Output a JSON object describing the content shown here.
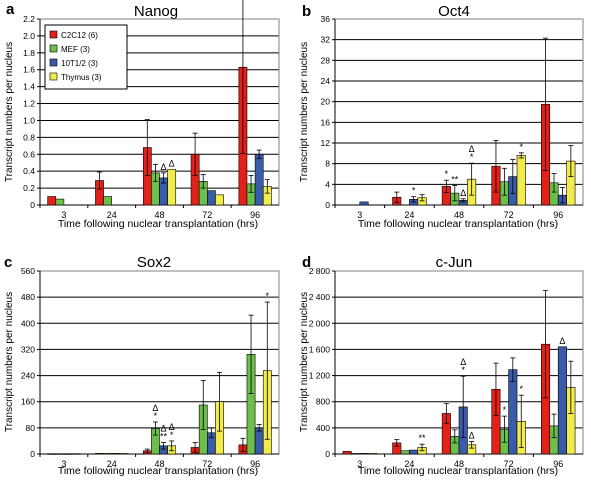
{
  "colors": {
    "C2C12": "#e32119",
    "MEF": "#6cc04a",
    "10T1/2": "#3a5ba9",
    "Thymus": "#f2ec4a",
    "grid": "#000000"
  },
  "chart_data": [
    {
      "type": "bar",
      "panel": "a",
      "title": "Nanog",
      "xlabel": "Time following nuclear transplantation (hrs)",
      "ylabel": "Transcript numbers per nucleus",
      "categories": [
        "3",
        "24",
        "48",
        "72",
        "96"
      ],
      "ylim": [
        0,
        2.2
      ],
      "yticks": [
        "0",
        "0.2",
        "0.4",
        "0.6",
        "0.8",
        "1.0",
        "1.2",
        "1.4",
        "1.6",
        "1.8",
        "2.0",
        "2.2"
      ],
      "grid": true,
      "legend_position": "top-left",
      "legend": [
        "C2C12 (6)",
        "MEF (3)",
        "10T1/2 (3)",
        "Thymus (3)"
      ],
      "series": [
        {
          "name": "C2C12 (6)",
          "color_key": "C2C12",
          "values": [
            0.1,
            0.29,
            0.68,
            0.6,
            1.63
          ],
          "errors": [
            0,
            0.1,
            0.33,
            0.25,
            1.02
          ]
        },
        {
          "name": "MEF (3)",
          "color_key": "MEF",
          "values": [
            0.07,
            0.1,
            0.38,
            0.28,
            0.25
          ],
          "errors": [
            0,
            0,
            0.1,
            0.08,
            0.1
          ]
        },
        {
          "name": "10T1/2 (3)",
          "color_key": "10T1/2",
          "values": [
            null,
            null,
            0.32,
            0.17,
            0.6
          ],
          "errors": [
            0,
            0,
            0.06,
            0,
            0.05
          ]
        },
        {
          "name": "Thymus (3)",
          "color_key": "Thymus",
          "values": [
            null,
            null,
            0.42,
            0.12,
            0.22
          ],
          "errors": [
            0,
            0,
            0,
            0,
            0.08
          ]
        }
      ],
      "annotations": [
        {
          "category": "48",
          "series": 2,
          "labels": [
            "Δ"
          ]
        },
        {
          "category": "48",
          "series": 3,
          "labels": [
            "Δ"
          ]
        }
      ]
    },
    {
      "type": "bar",
      "panel": "b",
      "title": "Oct4",
      "xlabel": "Time following nuclear transplantation (hrs)",
      "ylabel": "Transcript numbers per nucleus",
      "categories": [
        "3",
        "24",
        "48",
        "72",
        "96"
      ],
      "ylim": [
        0,
        36
      ],
      "yticks": [
        "0",
        "4",
        "8",
        "12",
        "16",
        "20",
        "24",
        "28",
        "32",
        "36"
      ],
      "grid": true,
      "series": [
        {
          "name": "C2C12 (6)",
          "color_key": "C2C12",
          "values": [
            null,
            1.5,
            3.6,
            7.5,
            19.5
          ],
          "errors": [
            0,
            1.0,
            1.2,
            5.0,
            12.8
          ]
        },
        {
          "name": "MEF (3)",
          "color_key": "MEF",
          "values": [
            null,
            null,
            2.3,
            4.5,
            4.3
          ],
          "errors": [
            0,
            0,
            1.5,
            2.6,
            1.8
          ]
        },
        {
          "name": "10T1/2 (3)",
          "color_key": "10T1/2",
          "values": [
            0.6,
            1.1,
            0.9,
            5.5,
            1.9
          ],
          "errors": [
            0,
            0.5,
            0.3,
            3.3,
            1.5
          ]
        },
        {
          "name": "Thymus (3)",
          "color_key": "Thymus",
          "values": [
            null,
            1.4,
            5.0,
            9.6,
            8.5
          ],
          "errors": [
            0,
            0.6,
            3.1,
            0.5,
            3.0
          ]
        }
      ],
      "annotations": [
        {
          "category": "24",
          "series": 2,
          "labels": [
            "*"
          ]
        },
        {
          "category": "48",
          "series": 0,
          "labels": [
            "*"
          ]
        },
        {
          "category": "48",
          "series": 1,
          "labels": [
            "**"
          ]
        },
        {
          "category": "48",
          "series": 2,
          "labels": [
            "Δ"
          ]
        },
        {
          "category": "48",
          "series": 3,
          "labels": [
            "Δ",
            "*"
          ]
        },
        {
          "category": "72",
          "series": 3,
          "labels": [
            "*"
          ]
        }
      ]
    },
    {
      "type": "bar",
      "panel": "c",
      "title": "Sox2",
      "xlabel": "Time following nuclear transplantation (hrs)",
      "ylabel": "Transcript numbers per nucleus",
      "categories": [
        "3",
        "24",
        "48",
        "72",
        "96"
      ],
      "ylim": [
        0,
        560
      ],
      "yticks": [
        "0",
        "80",
        "160",
        "240",
        "320",
        "400",
        "480",
        "560"
      ],
      "grid": true,
      "series": [
        {
          "name": "C2C12 (6)",
          "color_key": "C2C12",
          "values": [
            1,
            2,
            10,
            20,
            28
          ],
          "errors": [
            0,
            0,
            5,
            15,
            20
          ]
        },
        {
          "name": "MEF (3)",
          "color_key": "MEF",
          "values": [
            1,
            2,
            78,
            150,
            305
          ],
          "errors": [
            0,
            0,
            20,
            75,
            120
          ]
        },
        {
          "name": "10T1/2 (3)",
          "color_key": "10T1/2",
          "values": [
            1,
            2,
            25,
            65,
            80
          ],
          "errors": [
            0,
            0,
            10,
            15,
            10
          ]
        },
        {
          "name": "Thymus (3)",
          "color_key": "Thymus",
          "values": [
            1,
            2,
            25,
            160,
            255
          ],
          "errors": [
            0,
            0,
            15,
            90,
            210
          ]
        }
      ],
      "annotations": [
        {
          "category": "48",
          "series": 1,
          "labels": [
            "Δ",
            "*"
          ]
        },
        {
          "category": "48",
          "series": 2,
          "labels": [
            "Δ",
            "**"
          ]
        },
        {
          "category": "48",
          "series": 3,
          "labels": [
            "Δ",
            "*"
          ]
        },
        {
          "category": "96",
          "series": 3,
          "labels": [
            "*"
          ]
        }
      ]
    },
    {
      "type": "bar",
      "panel": "d",
      "title": "c-Jun",
      "xlabel": "Time following nuclear transplantation (hrs)",
      "ylabel": "Transcript numbers per nucleus",
      "categories": [
        "3",
        "24",
        "48",
        "72",
        "96"
      ],
      "ylim": [
        0,
        2800
      ],
      "yticks": [
        "0",
        "400",
        "800",
        "1 200",
        "1 600",
        "2 000",
        "2 400",
        "2 800"
      ],
      "grid": true,
      "series": [
        {
          "name": "C2C12 (6)",
          "color_key": "C2C12",
          "values": [
            40,
            170,
            620,
            990,
            1680
          ],
          "errors": [
            0,
            50,
            150,
            400,
            820
          ]
        },
        {
          "name": "MEF (3)",
          "color_key": "MEF",
          "values": [
            10,
            50,
            270,
            380,
            430
          ],
          "errors": [
            0,
            0,
            100,
            200,
            180
          ]
        },
        {
          "name": "10T1/2 (3)",
          "color_key": "10T1/2",
          "values": [
            10,
            60,
            720,
            1290,
            1640
          ],
          "errors": [
            0,
            0,
            470,
            180,
            0
          ]
        },
        {
          "name": "Thymus (3)",
          "color_key": "Thymus",
          "values": [
            10,
            100,
            140,
            500,
            1020
          ],
          "errors": [
            0,
            50,
            50,
            400,
            400
          ]
        }
      ],
      "annotations": [
        {
          "category": "24",
          "series": 3,
          "labels": [
            "**"
          ]
        },
        {
          "category": "48",
          "series": 2,
          "labels": [
            "Δ",
            "*"
          ]
        },
        {
          "category": "48",
          "series": 3,
          "labels": [
            "Δ"
          ]
        },
        {
          "category": "72",
          "series": 1,
          "labels": [
            "*"
          ]
        },
        {
          "category": "72",
          "series": 3,
          "labels": [
            "*"
          ]
        },
        {
          "category": "96",
          "series": 2,
          "labels": [
            "Δ"
          ]
        }
      ]
    }
  ]
}
